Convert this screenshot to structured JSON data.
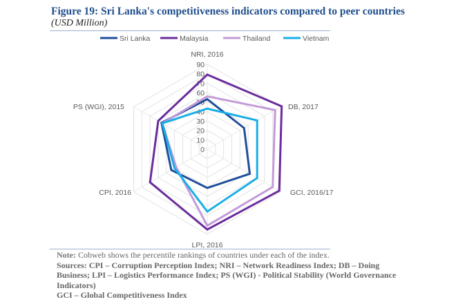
{
  "title": "Figure 19: Sri Lanka's competitiveness indicators compared to peer countries",
  "subtitle": "(USD Million)",
  "chart_data": {
    "type": "radar",
    "axes": [
      "NRI, 2016",
      "DB, 2017",
      "GCI, 2016/17",
      "LPI, 2016",
      "CPI, 2016",
      "PS (WGI), 2015"
    ],
    "rlim": [
      0,
      90
    ],
    "ticks": [
      "0",
      "10",
      "20",
      "30",
      "40",
      "50",
      "60",
      "70",
      "80",
      "90"
    ],
    "grid": true,
    "legend_position": "top",
    "series": [
      {
        "name": "Sri Lanka",
        "color": "#1f4e9a",
        "values": [
          53,
          45,
          52,
          41,
          44,
          56
        ]
      },
      {
        "name": "Malaysia",
        "color": "#6a2c9c",
        "values": [
          79,
          91,
          88,
          85,
          70,
          60
        ]
      },
      {
        "name": "Thailand",
        "color": "#c39ad8",
        "values": [
          56,
          83,
          80,
          81,
          38,
          55
        ]
      },
      {
        "name": "Vietnam",
        "color": "#19aee6",
        "values": [
          43,
          61,
          61,
          66,
          40,
          55
        ]
      }
    ]
  },
  "notes": {
    "note_label": "Note:",
    "note_text": "Cobweb shows the percentile rankings of countries under each of the index.",
    "sources": "Sources: CPI – Corruption Perception Index; NRI – Network Readiness Index; DB – Doing Business; LPI – Logistics Performance Index; PS (WGI) - Political Stability (World Governance Indicators)",
    "gci": "GCI – Global Competitiveness Index"
  }
}
